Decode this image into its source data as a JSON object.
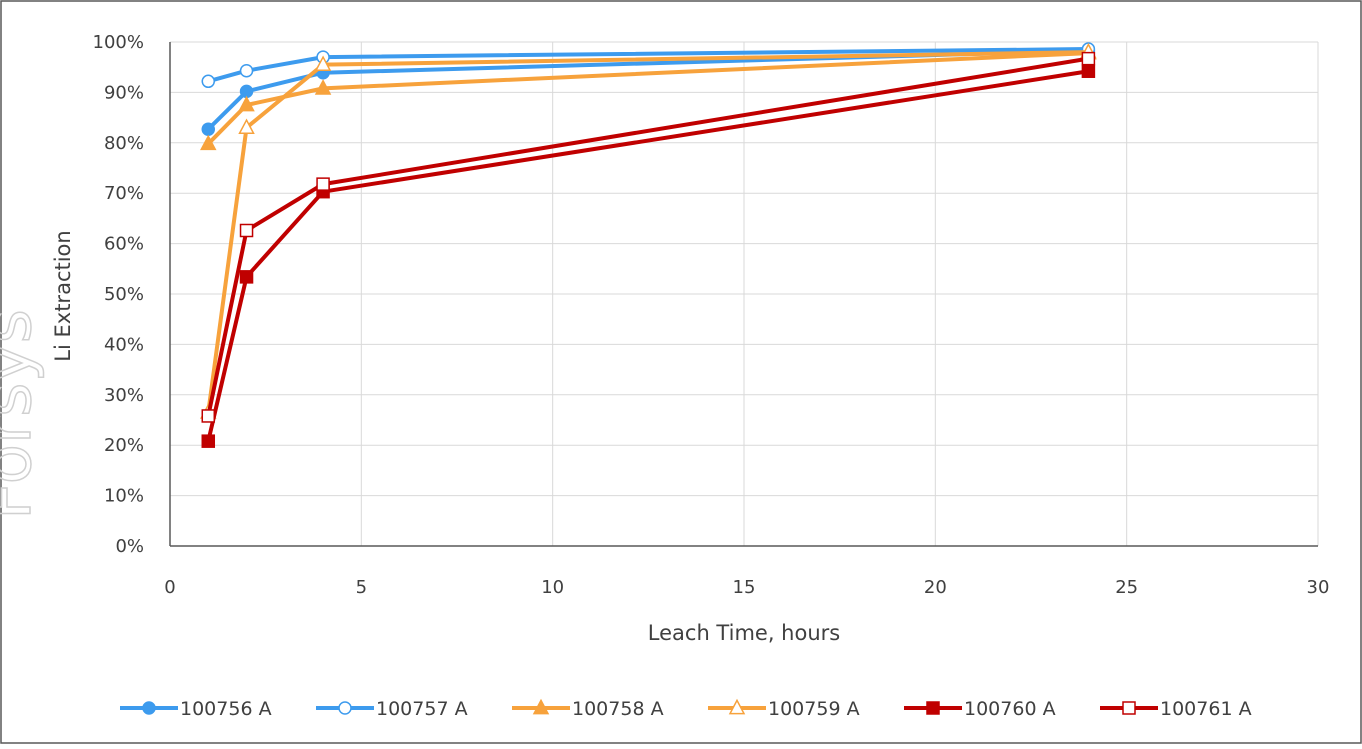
{
  "chart_data": {
    "type": "line",
    "title": "",
    "xlabel": "Leach Time, hours",
    "ylabel": "Li Extraction",
    "xlim": [
      0,
      30
    ],
    "ylim": [
      0,
      100
    ],
    "xticks": [
      0,
      5,
      10,
      15,
      20,
      25,
      30
    ],
    "yticks": [
      0,
      10,
      20,
      30,
      40,
      50,
      60,
      70,
      80,
      90,
      100
    ],
    "ytick_format": "percent",
    "grid": true,
    "legend_position": "bottom",
    "x": [
      1,
      2,
      4,
      24
    ],
    "series": [
      {
        "name": "100756 A",
        "color": "#3d9bee",
        "marker": "circle",
        "filled": true,
        "values": [
          82.7,
          90.2,
          93.9,
          98.3
        ]
      },
      {
        "name": "100757 A",
        "color": "#3d9bee",
        "marker": "circle",
        "filled": false,
        "values": [
          92.2,
          94.3,
          97.0,
          98.6
        ]
      },
      {
        "name": "100758 A",
        "color": "#f7a23c",
        "marker": "triangle",
        "filled": true,
        "values": [
          79.8,
          87.5,
          90.8,
          97.8
        ]
      },
      {
        "name": "100759 A",
        "color": "#f7a23c",
        "marker": "triangle",
        "filled": false,
        "values": [
          26.5,
          83.0,
          95.5,
          98.0
        ]
      },
      {
        "name": "100760 A",
        "color": "#c00000",
        "marker": "square",
        "filled": true,
        "values": [
          20.8,
          53.4,
          70.3,
          94.2
        ]
      },
      {
        "name": "100761 A",
        "color": "#c00000",
        "marker": "square",
        "filled": false,
        "values": [
          25.8,
          62.6,
          71.8,
          96.7
        ]
      }
    ]
  },
  "watermark_text": "Forsys"
}
